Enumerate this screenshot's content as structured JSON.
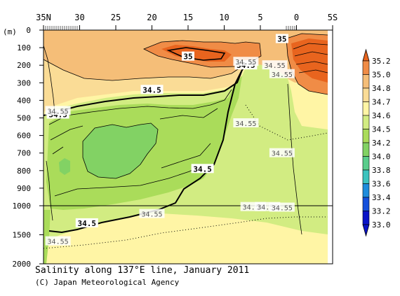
{
  "chart_data": {
    "type": "contour",
    "title": "Salinity along 137°E line, January 2011",
    "credit": "(C) Japan Meteorological Agency",
    "ylabel": "(m)",
    "x_ticks": [
      "35N",
      "30",
      "25",
      "20",
      "15",
      "10",
      "5",
      "0",
      "5S"
    ],
    "y_ticks_upper": [
      "0",
      "100",
      "200",
      "300",
      "400",
      "500",
      "600",
      "700",
      "800",
      "900",
      "1000"
    ],
    "y_ticks_lower": [
      "1500",
      "2000"
    ],
    "colorbar": {
      "levels": [
        "35.2",
        "35.0",
        "34.8",
        "34.7",
        "34.6",
        "34.5",
        "34.2",
        "34.0",
        "33.8",
        "33.6",
        "33.4",
        "33.2",
        "33.0"
      ],
      "colors": [
        "#e8641e",
        "#f08c46",
        "#f5be78",
        "#fadc96",
        "#fff5a5",
        "#d2ec82",
        "#aadc5a",
        "#82d264",
        "#5acd8c",
        "#3cc3be",
        "#1e8cdc",
        "#1450dc",
        "#0a14c8"
      ]
    },
    "contour_labels": [
      {
        "text": "35",
        "depth_m": 150,
        "lat": 15
      },
      {
        "text": "35",
        "depth_m": 50,
        "lat": 2
      },
      {
        "text": "34.5",
        "depth_m": 340,
        "lat": 20
      },
      {
        "text": "34.5",
        "depth_m": 480,
        "lat": 33
      },
      {
        "text": "34.5",
        "depth_m": 200,
        "lat": 7
      },
      {
        "text": "34.5",
        "depth_m": 790,
        "lat": 13
      },
      {
        "text": "34.5",
        "depth_m": 1300,
        "lat": 29
      },
      {
        "text": "34.55",
        "depth_m": 460,
        "lat": 33
      },
      {
        "text": "34.55",
        "depth_m": 180,
        "lat": 7
      },
      {
        "text": "34.55",
        "depth_m": 200,
        "lat": 3
      },
      {
        "text": "34.55",
        "depth_m": 250,
        "lat": 2
      },
      {
        "text": "34.55",
        "depth_m": 530,
        "lat": 7
      },
      {
        "text": "34.55",
        "depth_m": 700,
        "lat": 2
      },
      {
        "text": "34.55",
        "depth_m": 1020,
        "lat": 6
      },
      {
        "text": "34.55",
        "depth_m": 1020,
        "lat": 4
      },
      {
        "text": "34.55",
        "depth_m": 1030,
        "lat": 2
      },
      {
        "text": "34.55",
        "depth_m": 1140,
        "lat": 20
      },
      {
        "text": "34.55",
        "depth_m": 1610,
        "lat": 33
      }
    ]
  }
}
